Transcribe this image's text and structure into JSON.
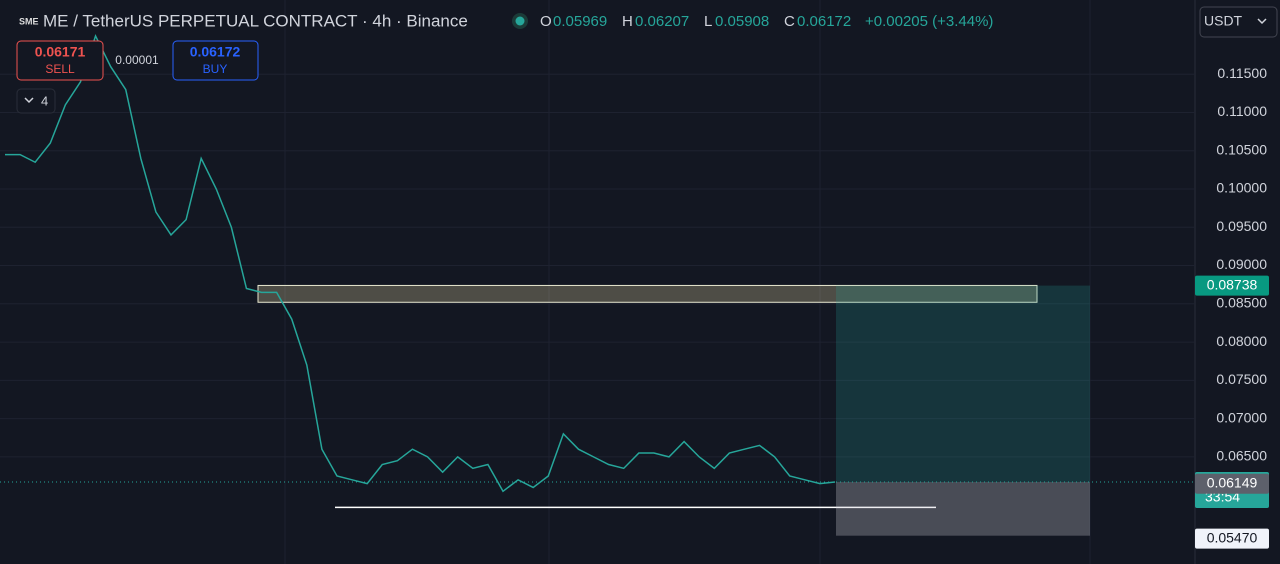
{
  "header": {
    "symbol": "ME / TetherUS PERPETUAL CONTRACT · 4h · Binance",
    "o_label": "O",
    "open": "0.05969",
    "h_label": "H",
    "high": "0.06207",
    "l_label": "L",
    "low": "0.05908",
    "c_label": "C",
    "close": "0.06172",
    "change": "+0.00205 (+3.44%)"
  },
  "trade": {
    "sell_price": "0.06171",
    "sell_label": "SELL",
    "spread": "0.00001",
    "buy_price": "0.06172",
    "buy_label": "BUY",
    "indicators": "4"
  },
  "currency": "USDT",
  "chart_data": {
    "type": "line",
    "color": "#26a69a",
    "values": [
      0.1045,
      0.1045,
      0.1035,
      0.106,
      0.111,
      0.114,
      0.12,
      0.116,
      0.113,
      0.104,
      0.097,
      0.094,
      0.096,
      0.104,
      0.1,
      0.095,
      0.087,
      0.0865,
      0.0865,
      0.083,
      0.077,
      0.066,
      0.0625,
      0.062,
      0.0615,
      0.064,
      0.0645,
      0.066,
      0.065,
      0.063,
      0.065,
      0.0635,
      0.064,
      0.0605,
      0.062,
      0.061,
      0.0625,
      0.068,
      0.066,
      0.065,
      0.064,
      0.0635,
      0.0655,
      0.0655,
      0.065,
      0.067,
      0.065,
      0.0635,
      0.0655,
      0.066,
      0.0665,
      0.065,
      0.0625,
      0.062,
      0.0615,
      0.06172
    ],
    "ylim": [
      0.051,
      0.1247
    ],
    "yticks": [
      {
        "value": 0.115,
        "label": "0.11500"
      },
      {
        "value": 0.11,
        "label": "0.11000"
      },
      {
        "value": 0.105,
        "label": "0.10500"
      },
      {
        "value": 0.1,
        "label": "0.10000"
      },
      {
        "value": 0.095,
        "label": "0.09500"
      },
      {
        "value": 0.09,
        "label": "0.09000"
      },
      {
        "value": 0.085,
        "label": "0.08500"
      },
      {
        "value": 0.08,
        "label": "0.08000"
      },
      {
        "value": 0.075,
        "label": "0.07500"
      },
      {
        "value": 0.07,
        "label": "0.07000"
      },
      {
        "value": 0.065,
        "label": "0.06500"
      }
    ],
    "target": 0.08738,
    "entry": 0.06172,
    "countdown": "33:54",
    "bid_line": 0.06149,
    "stop": {
      "value": 0.0547,
      "label": "0.05470"
    },
    "zone": [
      0.0874,
      0.0852
    ],
    "support": 0.0584
  }
}
